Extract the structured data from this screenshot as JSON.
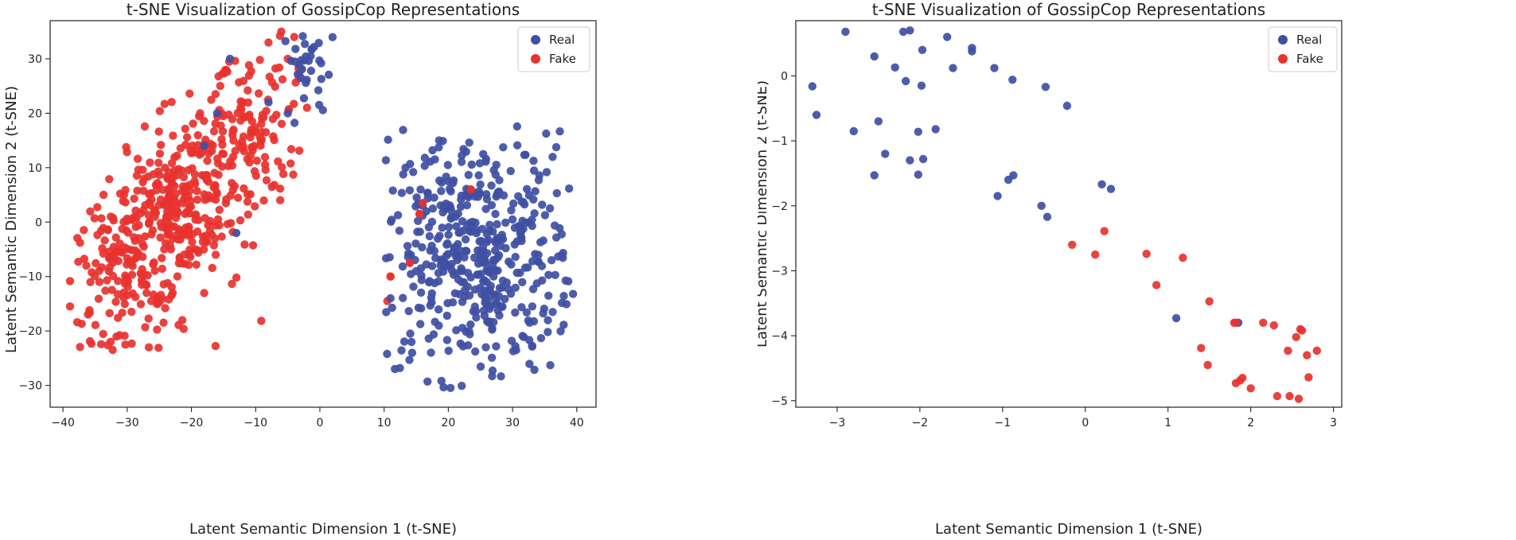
{
  "chart_data": [
    {
      "type": "scatter",
      "title": "t-SNE Visualization of GossipCop Representations",
      "xlabel": "Latent Semantic Dimension 1 (t-SNE)",
      "ylabel": "Latent Semantic Dimension 2 (t-SNE)",
      "xlim": [
        -42,
        43
      ],
      "ylim": [
        -34,
        37
      ],
      "xticks": [
        -40,
        -30,
        -20,
        -10,
        0,
        10,
        20,
        30,
        40
      ],
      "yticks": [
        -30,
        -20,
        -10,
        0,
        10,
        20,
        30
      ],
      "xtick_labels": [
        "−40",
        "−30",
        "−20",
        "−10",
        "0",
        "10",
        "20",
        "30",
        "40"
      ],
      "ytick_labels": [
        "−30",
        "−20",
        "−10",
        "0",
        "10",
        "20",
        "30"
      ],
      "legend": {
        "position": "top-right",
        "entries": [
          "Real",
          "Fake"
        ]
      },
      "series": [
        {
          "name": "Real",
          "color": "#3f4fa3",
          "approx_count": 520,
          "clusters": [
            {
              "cx": 24,
              "cy": -6,
              "sx": 8,
              "sy": 11,
              "n": 460,
              "xmin": 10,
              "xmax": 40,
              "ymin": -32,
              "ymax": 18
            },
            {
              "cx": -1.5,
              "cy": 28,
              "sx": 2.2,
              "sy": 4.5,
              "n": 32,
              "xmin": -6,
              "xmax": 2,
              "ymin": 16,
              "ymax": 35
            }
          ],
          "extra_points": [
            [
              -13,
              -2
            ],
            [
              -18,
              14
            ],
            [
              -16,
              20
            ],
            [
              -5,
              20
            ],
            [
              -14,
              30
            ],
            [
              -8,
              22
            ],
            [
              11,
              -14
            ],
            [
              15,
              -9
            ],
            [
              16,
              3
            ]
          ]
        },
        {
          "name": "Fake",
          "color": "#e8322f",
          "approx_count": 640,
          "clusters": [
            {
              "cx": -22,
              "cy": 2,
              "sx": 8,
              "sy": 13,
              "n": 560,
              "xmin": -39,
              "xmax": -3,
              "ymin": -24,
              "ymax": 35,
              "direction": [
                0.55,
                0.84
              ],
              "spread": [
                20,
                6
              ]
            }
          ],
          "extra_points": [
            [
              -6,
              35
            ],
            [
              -4,
              34
            ],
            [
              -8,
              33
            ],
            [
              -3,
              28
            ],
            [
              -5,
              30
            ],
            [
              -2,
              21
            ],
            [
              11,
              -10
            ],
            [
              14,
              -7.5
            ],
            [
              15.5,
              1.5
            ],
            [
              16,
              3.5
            ],
            [
              23.5,
              6
            ],
            [
              10.5,
              -14.5
            ]
          ]
        }
      ]
    },
    {
      "type": "scatter",
      "title": "t-SNE Visualization of GossipCop Representations",
      "xlabel": "Latent Semantic Dimension 1 (t-SNE)",
      "ylabel": "Latent Semantic Dimension 2 (t-SNE)",
      "xlim": [
        -3.5,
        3.1
      ],
      "ylim": [
        -5.1,
        0.85
      ],
      "xticks": [
        -3,
        -2,
        -1,
        0,
        1,
        2,
        3
      ],
      "yticks": [
        -5,
        -4,
        -3,
        -2,
        -1,
        0
      ],
      "xtick_labels": [
        "−3",
        "−2",
        "−1",
        "0",
        "1",
        "2",
        "3"
      ],
      "ytick_labels": [
        "−5",
        "−4",
        "−3",
        "−2",
        "−1",
        "0"
      ],
      "legend": {
        "position": "top-right",
        "entries": [
          "Real",
          "Fake"
        ]
      },
      "series": [
        {
          "name": "Real",
          "color": "#3f4fa3",
          "points": [
            [
              -2.9,
              0.68
            ],
            [
              -2.2,
              0.68
            ],
            [
              -2.12,
              0.7
            ],
            [
              -1.97,
              0.4
            ],
            [
              -1.67,
              0.6
            ],
            [
              -1.37,
              0.38
            ],
            [
              -1.37,
              0.43
            ],
            [
              -2.55,
              0.3
            ],
            [
              -2.3,
              0.13
            ],
            [
              -2.17,
              -0.08
            ],
            [
              -1.6,
              0.12
            ],
            [
              -1.1,
              0.12
            ],
            [
              -0.88,
              -0.06
            ],
            [
              -0.48,
              -0.17
            ],
            [
              -1.98,
              -0.15
            ],
            [
              -3.3,
              -0.16
            ],
            [
              -3.25,
              -0.6
            ],
            [
              -0.22,
              -0.46
            ],
            [
              -2.5,
              -0.7
            ],
            [
              -2.8,
              -0.85
            ],
            [
              -2.02,
              -0.86
            ],
            [
              -1.81,
              -0.82
            ],
            [
              -2.42,
              -1.2
            ],
            [
              -2.12,
              -1.3
            ],
            [
              -1.96,
              -1.28
            ],
            [
              -2.55,
              -1.53
            ],
            [
              -2.02,
              -1.52
            ],
            [
              -0.93,
              -1.6
            ],
            [
              -0.87,
              -1.53
            ],
            [
              -1.06,
              -1.85
            ],
            [
              0.2,
              -1.67
            ],
            [
              0.31,
              -1.74
            ],
            [
              -0.53,
              -2.0
            ],
            [
              -0.46,
              -2.17
            ],
            [
              1.1,
              -3.73
            ],
            [
              1.85,
              -3.8
            ]
          ]
        },
        {
          "name": "Fake",
          "color": "#e8322f",
          "points": [
            [
              0.23,
              -2.39
            ],
            [
              -0.16,
              -2.6
            ],
            [
              0.12,
              -2.75
            ],
            [
              0.74,
              -2.74
            ],
            [
              1.18,
              -2.8
            ],
            [
              0.86,
              -3.22
            ],
            [
              1.5,
              -3.47
            ],
            [
              1.8,
              -3.8
            ],
            [
              1.82,
              -3.8
            ],
            [
              2.15,
              -3.8
            ],
            [
              2.28,
              -3.84
            ],
            [
              2.6,
              -3.9
            ],
            [
              2.62,
              -3.92
            ],
            [
              2.55,
              -4.02
            ],
            [
              1.4,
              -4.19
            ],
            [
              2.45,
              -4.23
            ],
            [
              2.8,
              -4.23
            ],
            [
              2.68,
              -4.3
            ],
            [
              1.48,
              -4.45
            ],
            [
              2.7,
              -4.64
            ],
            [
              1.9,
              -4.65
            ],
            [
              1.87,
              -4.69
            ],
            [
              1.82,
              -4.73
            ],
            [
              2.0,
              -4.81
            ],
            [
              2.32,
              -4.93
            ],
            [
              2.47,
              -4.93
            ],
            [
              2.58,
              -4.97
            ]
          ]
        }
      ]
    }
  ]
}
